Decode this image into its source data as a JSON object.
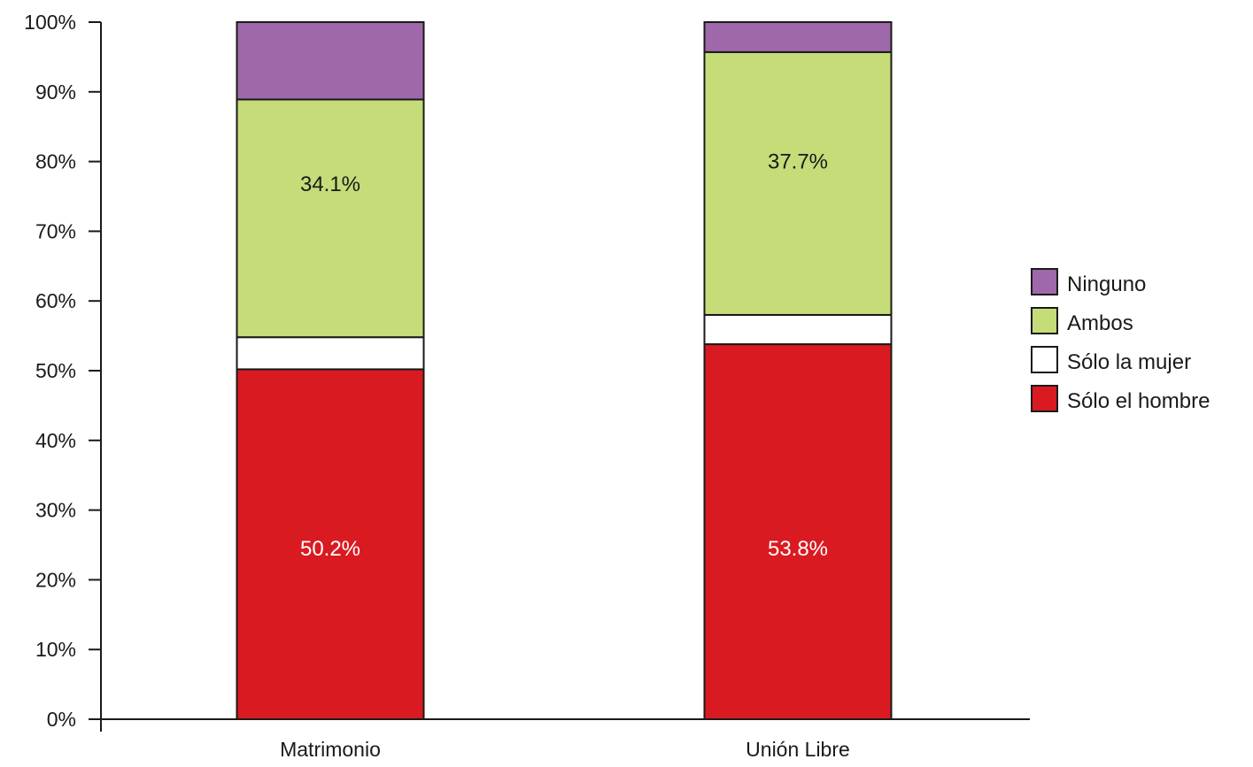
{
  "chart_data": {
    "type": "bar",
    "stacked": true,
    "categories": [
      "Matrimonio",
      "Unión Libre"
    ],
    "series": [
      {
        "name": "Sólo el hombre",
        "values": [
          50.2,
          53.8
        ],
        "color": "#da1a21",
        "labels": [
          "50.2%",
          "53.8%"
        ],
        "label_color": "#ffffff"
      },
      {
        "name": "Sólo la mujer",
        "values": [
          4.6,
          4.2
        ],
        "color": "#ffffff",
        "labels": [
          "",
          ""
        ],
        "label_color": "#1a1a1a"
      },
      {
        "name": "Ambos",
        "values": [
          34.1,
          37.7
        ],
        "color": "#c5dc79",
        "labels": [
          "34.1%",
          "37.7%"
        ],
        "label_color": "#1a1a1a"
      },
      {
        "name": "Ninguno",
        "values": [
          11.1,
          4.3
        ],
        "color": "#9e68ab",
        "labels": [
          "",
          ""
        ],
        "label_color": "#1a1a1a"
      }
    ],
    "legend": {
      "position": "right",
      "order": [
        "Ninguno",
        "Ambos",
        "Sólo la mujer",
        "Sólo el hombre"
      ]
    },
    "y_ticks": [
      "0%",
      "10%",
      "20%",
      "30%",
      "40%",
      "50%",
      "60%",
      "70%",
      "80%",
      "90%",
      "100%"
    ],
    "ylim": [
      0,
      100
    ],
    "grid": false,
    "title": "",
    "xlabel": "",
    "ylabel": ""
  }
}
